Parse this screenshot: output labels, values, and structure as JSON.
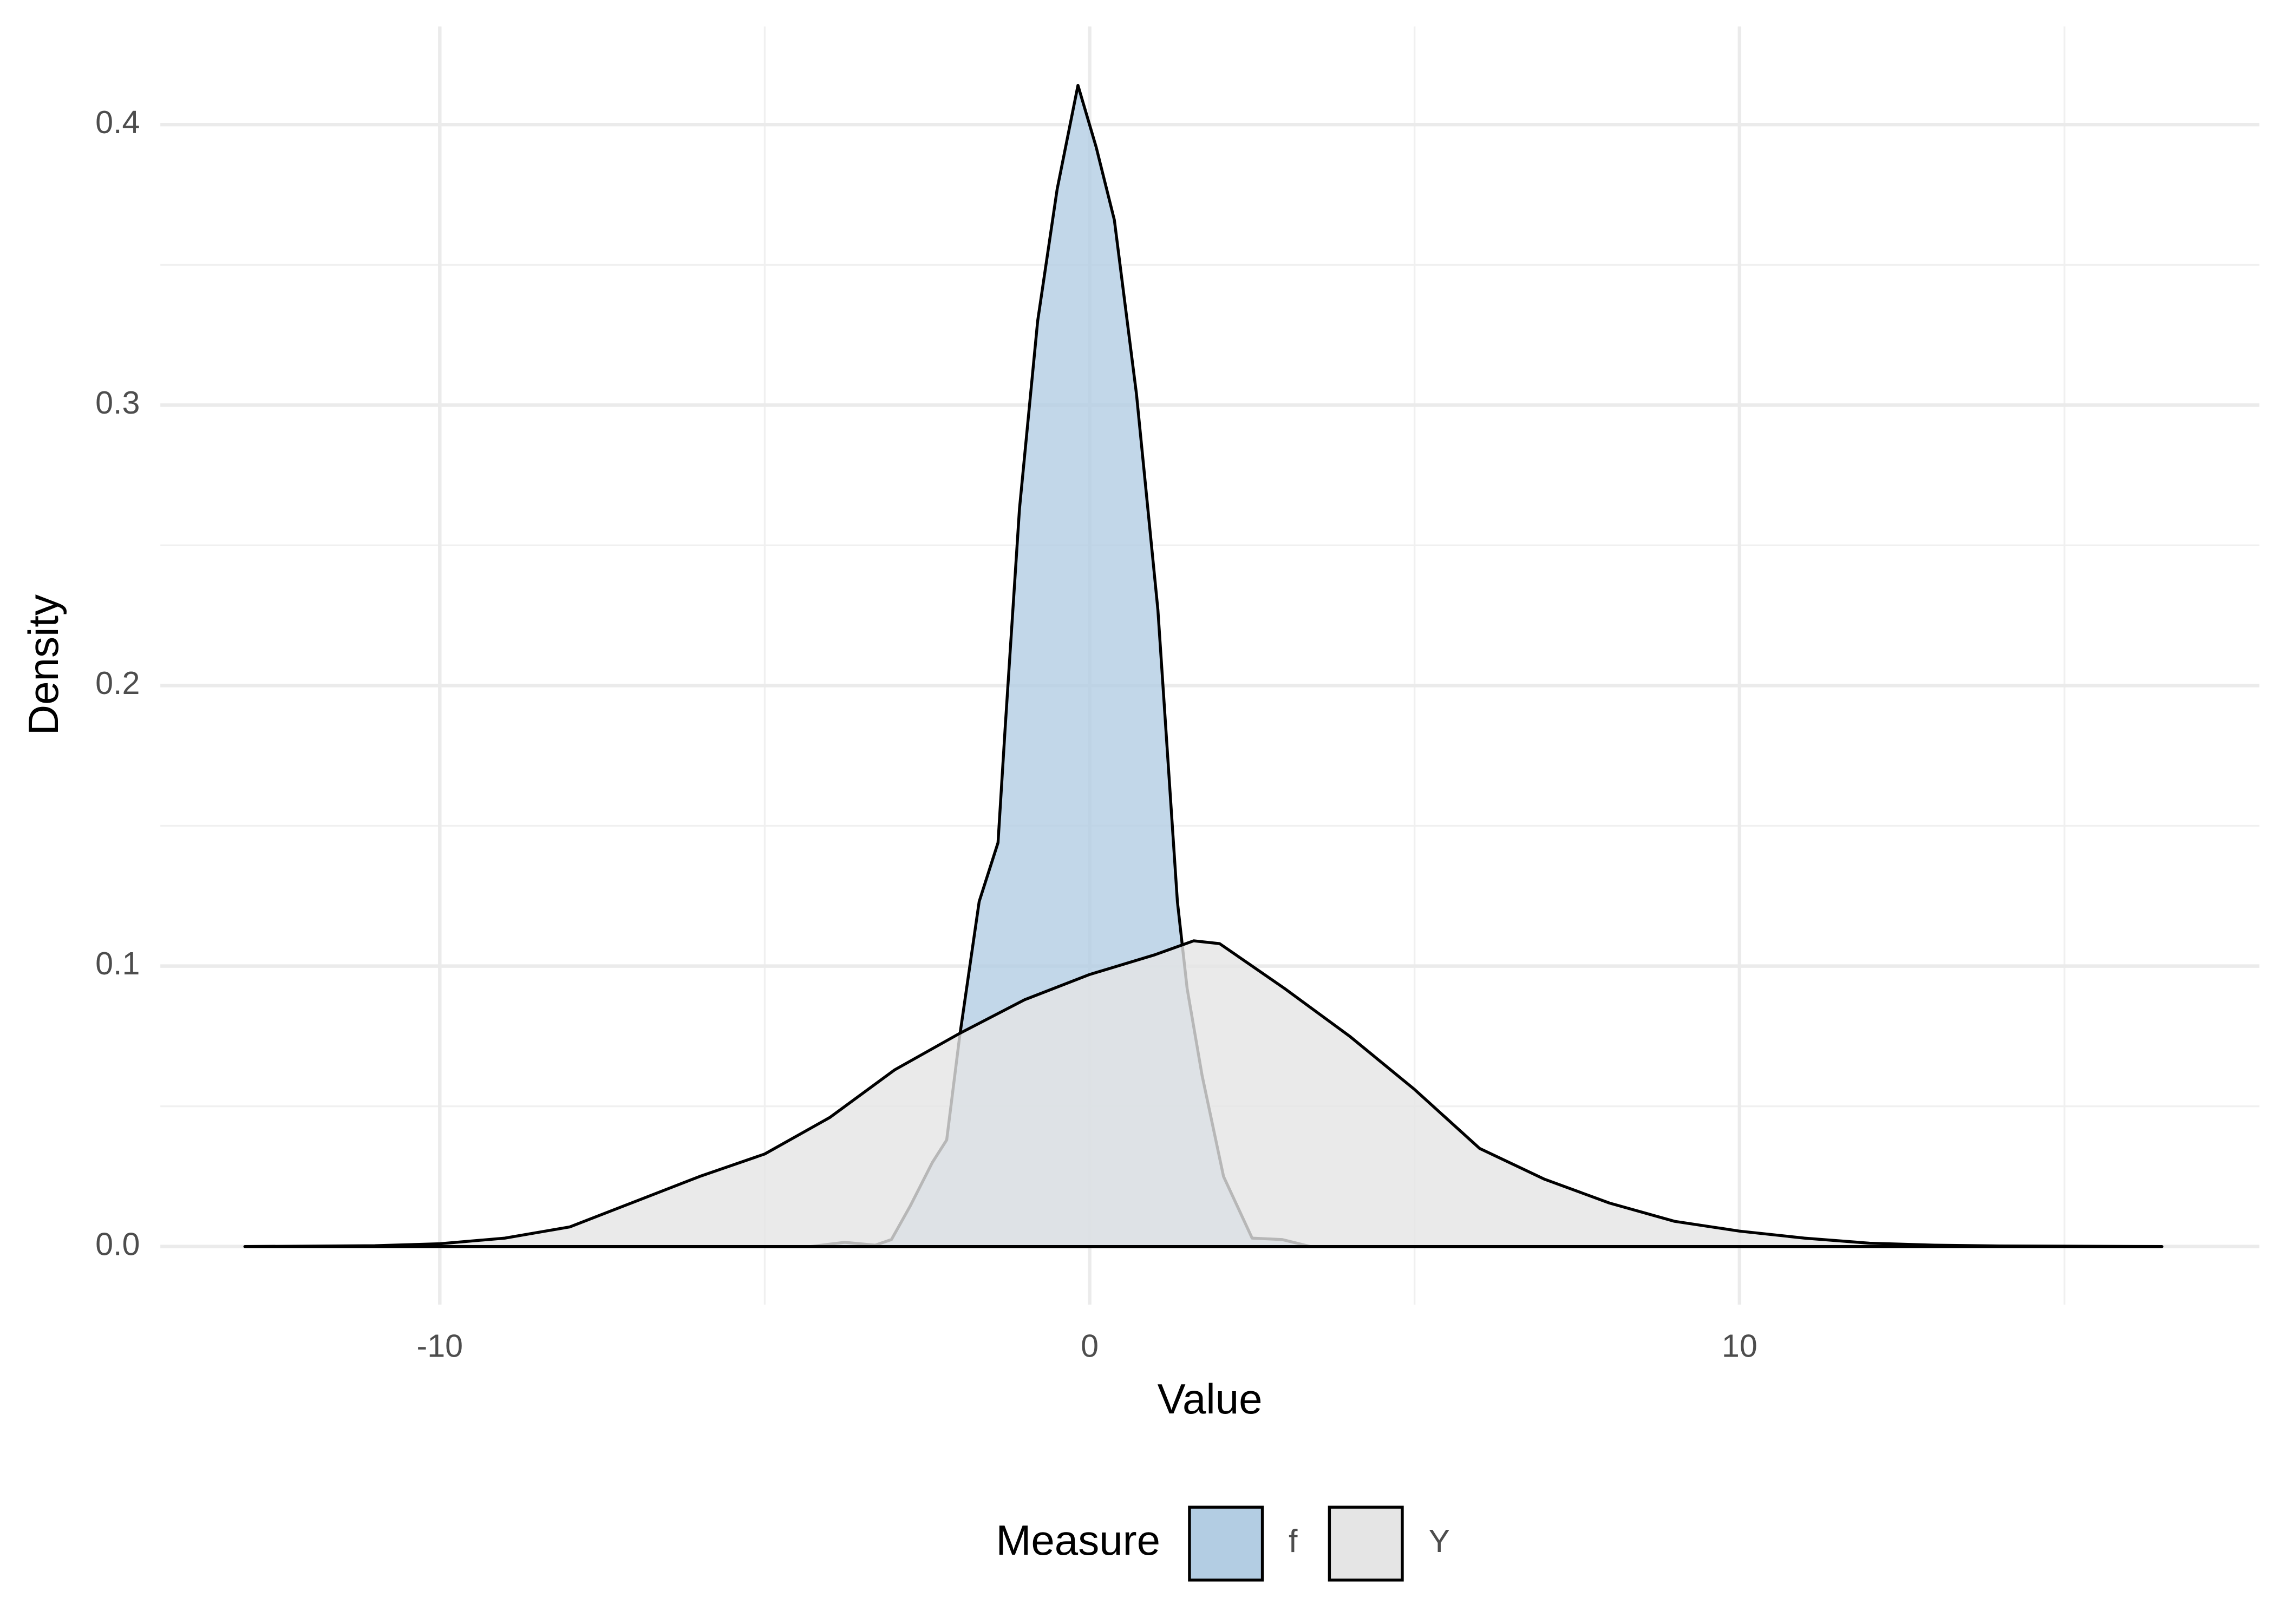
{
  "chart_data": {
    "type": "density",
    "x_label": "Value",
    "y_label": "Density",
    "legend_title": "Measure",
    "legend": "bottom",
    "grid": true,
    "xlim": [
      -14.3,
      18
    ],
    "ylim": [
      -0.0207,
      0.435
    ],
    "xticks": [
      -10,
      0,
      10
    ],
    "xminor": [
      -5,
      5,
      15
    ],
    "yticks": [
      {
        "value": 0,
        "label": "0.0"
      },
      0.1,
      0.2,
      0.3,
      0.4
    ],
    "yminor": [
      0.05,
      0.15,
      0.25,
      0.35
    ],
    "series": [
      {
        "name": "f",
        "color": "#b3cde3",
        "x": [
          -4.3,
          -3.77,
          -3.3,
          -3.05,
          -2.76,
          -2.42,
          -2.2,
          -2.0,
          -1.7,
          -1.41,
          -1.3,
          -1.08,
          -0.8,
          -0.5,
          -0.18,
          0.1,
          0.38,
          0.72,
          1.05,
          1.35,
          1.5,
          1.73,
          2.06,
          2.5,
          2.96,
          3.4
        ],
        "values": [
          0,
          0.0015,
          0.0005,
          0.0025,
          0.0145,
          0.03,
          0.038,
          0.075,
          0.123,
          0.144,
          0.185,
          0.263,
          0.33,
          0.377,
          0.414,
          0.392,
          0.366,
          0.304,
          0.227,
          0.123,
          0.092,
          0.061,
          0.025,
          0.003,
          0.0025,
          0
        ]
      },
      {
        "name": "Y",
        "color": "#e5e5e5",
        "x": [
          -13,
          -11,
          -10,
          -9,
          -8,
          -7,
          -6,
          -5,
          -4,
          -3,
          -2,
          -1,
          0,
          1,
          1.6,
          2,
          3,
          4,
          5,
          6,
          7,
          8,
          9,
          10,
          11,
          12,
          13,
          14,
          16.5
        ],
        "values": [
          0,
          0.0003,
          0.001,
          0.003,
          0.007,
          0.016,
          0.025,
          0.033,
          0.046,
          0.063,
          0.076,
          0.088,
          0.097,
          0.104,
          0.109,
          0.108,
          0.092,
          0.075,
          0.056,
          0.035,
          0.024,
          0.0155,
          0.009,
          0.0055,
          0.003,
          0.0012,
          0.0005,
          0.0002,
          0
        ]
      }
    ]
  }
}
